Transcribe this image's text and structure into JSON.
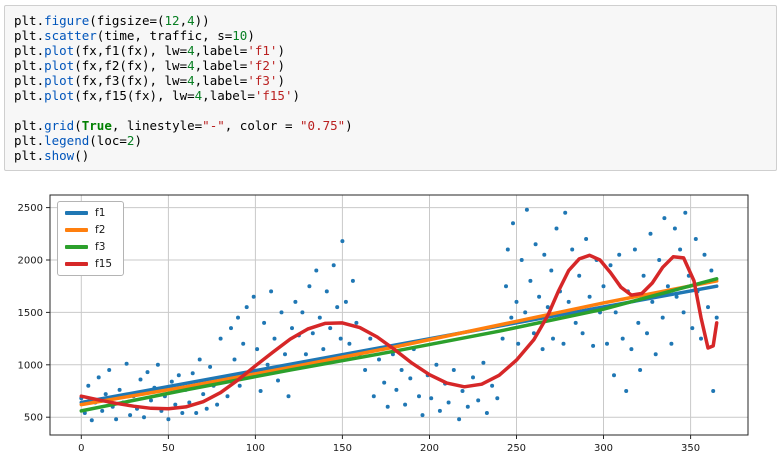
{
  "code_cell": {
    "language": "python",
    "lines": [
      "plt.figure(figsize=(12,4))",
      "plt.scatter(time, traffic, s=10)",
      "plt.plot(fx,f1(fx), lw=4,label='f1')",
      "plt.plot(fx,f2(fx), lw=4,label='f2')",
      "plt.plot(fx,f3(fx), lw=4,label='f3')",
      "plt.plot(fx,f15(fx), lw=4,label='f15')",
      "",
      "plt.grid(True, linestyle=\"-\", color = \"0.75\")",
      "plt.legend(loc=2)",
      "plt.show()"
    ]
  },
  "chart_data": {
    "type": "scatter",
    "title": "",
    "xlabel": "",
    "ylabel": "",
    "xlim": [
      -18,
      383
    ],
    "ylim": [
      330,
      2620
    ],
    "xticks": [
      0,
      50,
      100,
      150,
      200,
      250,
      300,
      350
    ],
    "yticks": [
      500,
      1000,
      1500,
      2000,
      2500
    ],
    "grid": true,
    "grid_color": "#bfbfbf",
    "legend_position": "upper-left",
    "scatter_color": "#1f77b4",
    "scatter": [
      [
        0,
        680
      ],
      [
        2,
        540
      ],
      [
        4,
        800
      ],
      [
        6,
        470
      ],
      [
        8,
        640
      ],
      [
        10,
        880
      ],
      [
        12,
        560
      ],
      [
        14,
        720
      ],
      [
        16,
        950
      ],
      [
        18,
        600
      ],
      [
        20,
        480
      ],
      [
        22,
        760
      ],
      [
        24,
        640
      ],
      [
        26,
        1010
      ],
      [
        28,
        520
      ],
      [
        30,
        700
      ],
      [
        32,
        580
      ],
      [
        34,
        860
      ],
      [
        36,
        500
      ],
      [
        38,
        930
      ],
      [
        40,
        660
      ],
      [
        42,
        780
      ],
      [
        44,
        1000
      ],
      [
        46,
        560
      ],
      [
        48,
        700
      ],
      [
        50,
        480
      ],
      [
        52,
        840
      ],
      [
        54,
        620
      ],
      [
        56,
        900
      ],
      [
        58,
        540
      ],
      [
        60,
        760
      ],
      [
        62,
        640
      ],
      [
        64,
        920
      ],
      [
        66,
        540
      ],
      [
        68,
        1050
      ],
      [
        70,
        720
      ],
      [
        72,
        580
      ],
      [
        74,
        980
      ],
      [
        76,
        800
      ],
      [
        78,
        620
      ],
      [
        80,
        1250
      ],
      [
        82,
        880
      ],
      [
        84,
        700
      ],
      [
        86,
        1350
      ],
      [
        88,
        1050
      ],
      [
        90,
        1450
      ],
      [
        91,
        800
      ],
      [
        93,
        1200
      ],
      [
        95,
        1550
      ],
      [
        97,
        900
      ],
      [
        99,
        1650
      ],
      [
        101,
        1150
      ],
      [
        103,
        750
      ],
      [
        105,
        1400
      ],
      [
        107,
        1000
      ],
      [
        109,
        1700
      ],
      [
        111,
        1250
      ],
      [
        113,
        850
      ],
      [
        115,
        1500
      ],
      [
        117,
        1100
      ],
      [
        119,
        700
      ],
      [
        121,
        1350
      ],
      [
        123,
        1600
      ],
      [
        124,
        1000
      ],
      [
        125,
        1280
      ],
      [
        127,
        1500
      ],
      [
        129,
        1100
      ],
      [
        131,
        1750
      ],
      [
        133,
        1300
      ],
      [
        135,
        1900
      ],
      [
        137,
        1450
      ],
      [
        139,
        1150
      ],
      [
        141,
        1700
      ],
      [
        143,
        1350
      ],
      [
        145,
        1950
      ],
      [
        147,
        1550
      ],
      [
        149,
        1250
      ],
      [
        150,
        2180
      ],
      [
        152,
        1600
      ],
      [
        154,
        1200
      ],
      [
        156,
        1800
      ],
      [
        158,
        1400
      ],
      [
        160,
        1100
      ],
      [
        163,
        950
      ],
      [
        166,
        1250
      ],
      [
        168,
        700
      ],
      [
        171,
        1050
      ],
      [
        174,
        830
      ],
      [
        176,
        600
      ],
      [
        179,
        1100
      ],
      [
        181,
        760
      ],
      [
        184,
        950
      ],
      [
        186,
        620
      ],
      [
        189,
        870
      ],
      [
        191,
        1150
      ],
      [
        194,
        700
      ],
      [
        196,
        520
      ],
      [
        199,
        900
      ],
      [
        201,
        680
      ],
      [
        204,
        1000
      ],
      [
        206,
        560
      ],
      [
        209,
        820
      ],
      [
        211,
        640
      ],
      [
        214,
        950
      ],
      [
        217,
        480
      ],
      [
        219,
        750
      ],
      [
        222,
        600
      ],
      [
        225,
        880
      ],
      [
        228,
        660
      ],
      [
        231,
        1020
      ],
      [
        233,
        540
      ],
      [
        236,
        800
      ],
      [
        239,
        680
      ],
      [
        242,
        1250
      ],
      [
        244,
        1750
      ],
      [
        245,
        2100
      ],
      [
        247,
        1450
      ],
      [
        248,
        2350
      ],
      [
        250,
        1600
      ],
      [
        251,
        1200
      ],
      [
        253,
        2000
      ],
      [
        255,
        1500
      ],
      [
        256,
        2480
      ],
      [
        258,
        1800
      ],
      [
        260,
        1300
      ],
      [
        261,
        2150
      ],
      [
        263,
        1650
      ],
      [
        265,
        1150
      ],
      [
        266,
        2050
      ],
      [
        268,
        1550
      ],
      [
        270,
        1900
      ],
      [
        271,
        1250
      ],
      [
        273,
        2300
      ],
      [
        275,
        1700
      ],
      [
        277,
        1200
      ],
      [
        278,
        2450
      ],
      [
        280,
        1600
      ],
      [
        282,
        2100
      ],
      [
        284,
        1400
      ],
      [
        286,
        1850
      ],
      [
        288,
        1300
      ],
      [
        290,
        2200
      ],
      [
        292,
        1650
      ],
      [
        294,
        1180
      ],
      [
        296,
        2000
      ],
      [
        298,
        1500
      ],
      [
        300,
        1750
      ],
      [
        302,
        1200
      ],
      [
        304,
        1950
      ],
      [
        306,
        900
      ],
      [
        307,
        1500
      ],
      [
        309,
        2050
      ],
      [
        311,
        1250
      ],
      [
        313,
        750
      ],
      [
        314,
        1700
      ],
      [
        316,
        1150
      ],
      [
        318,
        2100
      ],
      [
        320,
        1400
      ],
      [
        321,
        950
      ],
      [
        323,
        1850
      ],
      [
        325,
        1300
      ],
      [
        327,
        2250
      ],
      [
        328,
        1600
      ],
      [
        330,
        1100
      ],
      [
        332,
        2000
      ],
      [
        334,
        1450
      ],
      [
        335,
        2400
      ],
      [
        337,
        1750
      ],
      [
        339,
        1200
      ],
      [
        341,
        2300
      ],
      [
        342,
        1650
      ],
      [
        344,
        2100
      ],
      [
        346,
        1500
      ],
      [
        347,
        2450
      ],
      [
        349,
        1850
      ],
      [
        351,
        1350
      ],
      [
        353,
        2200
      ],
      [
        354,
        1700
      ],
      [
        356,
        1250
      ],
      [
        358,
        2050
      ],
      [
        360,
        1550
      ],
      [
        362,
        1900
      ],
      [
        363,
        750
      ],
      [
        365,
        1450
      ]
    ],
    "series": [
      {
        "label": "f1",
        "color": "#1f77b4",
        "x": [
          0,
          365
        ],
        "y": [
          640,
          1750
        ]
      },
      {
        "label": "f2",
        "color": "#ff7f0e",
        "x": [
          0,
          60,
          120,
          180,
          240,
          300,
          365
        ],
        "y": [
          620,
          790,
          975,
          1170,
          1380,
          1590,
          1800
        ]
      },
      {
        "label": "f3",
        "color": "#2ca02c",
        "x": [
          0,
          60,
          120,
          180,
          240,
          300,
          365
        ],
        "y": [
          560,
          760,
          950,
          1130,
          1320,
          1530,
          1820
        ]
      },
      {
        "label": "f15",
        "color": "#d62728",
        "x": [
          0,
          10,
          20,
          30,
          40,
          50,
          60,
          70,
          80,
          90,
          100,
          110,
          120,
          130,
          140,
          150,
          160,
          170,
          180,
          190,
          200,
          210,
          220,
          230,
          240,
          250,
          260,
          268,
          274,
          280,
          286,
          292,
          298,
          304,
          310,
          316,
          322,
          328,
          334,
          340,
          346,
          352,
          356,
          360,
          363,
          365
        ],
        "y": [
          700,
          665,
          632,
          605,
          585,
          580,
          598,
          648,
          735,
          855,
          990,
          1120,
          1245,
          1340,
          1395,
          1400,
          1355,
          1265,
          1145,
          1015,
          905,
          825,
          790,
          815,
          900,
          1045,
          1240,
          1470,
          1700,
          1900,
          2010,
          2045,
          2000,
          1880,
          1740,
          1665,
          1680,
          1780,
          1930,
          2030,
          2020,
          1800,
          1450,
          1160,
          1180,
          1400
        ]
      }
    ]
  }
}
